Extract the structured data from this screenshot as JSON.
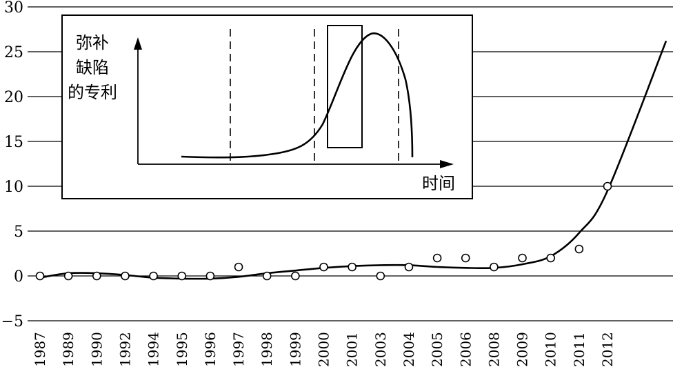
{
  "chart_data": [
    {
      "type": "scatter",
      "title": "",
      "xlabel": "",
      "ylabel": "",
      "ylim": [
        -5,
        30
      ],
      "yticks": [
        -5,
        0,
        5,
        10,
        15,
        20,
        25,
        30
      ],
      "ytick_labels": [
        "−5",
        "0",
        "5",
        "10",
        "15",
        "20",
        "25",
        "30"
      ],
      "grid": "horizontal",
      "categories": [
        "1987",
        "1989",
        "1990",
        "1992",
        "1994",
        "1995",
        "1996",
        "1997",
        "1998",
        "1999",
        "2000",
        "2001",
        "2003",
        "2004",
        "2005",
        "2006",
        "2008",
        "2009",
        "2010",
        "2011",
        "2012"
      ],
      "values": [
        0,
        0,
        0,
        0,
        0,
        0,
        0,
        1,
        0,
        0,
        1,
        1,
        0,
        1,
        2,
        2,
        1,
        2,
        2,
        3,
        10
      ],
      "trend_line": {
        "type": "line",
        "values": [
          -0.2,
          0.3,
          0.3,
          0.1,
          -0.2,
          -0.3,
          -0.3,
          -0.1,
          0.3,
          0.6,
          0.9,
          1.1,
          1.2,
          1.2,
          1.0,
          0.9,
          0.9,
          1.3,
          2.2,
          4.8,
          9.5
        ],
        "end_value": 26.2
      },
      "color": "#000000"
    },
    {
      "type": "line",
      "role": "inset",
      "ylabel": "弥补缺陷的专利",
      "xlabel": "时间",
      "shape": "rising S-curve peaking then falling sharply",
      "dashed_dividers": 3,
      "highlight_box": "around rising phase before peak",
      "color": "#000000"
    }
  ]
}
